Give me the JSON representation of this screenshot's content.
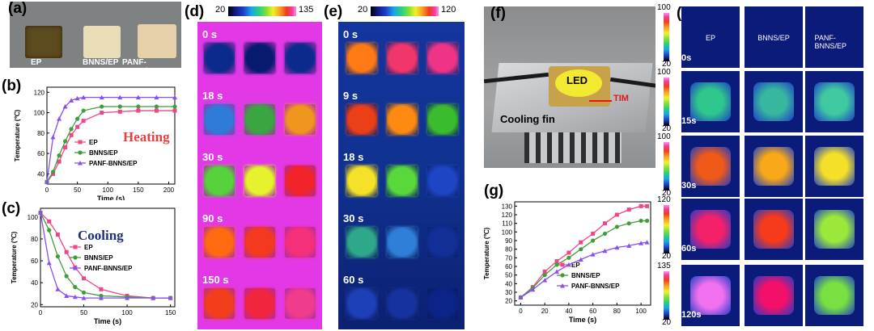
{
  "panels": {
    "a": "(a)",
    "b": "(b)",
    "c": "(c)",
    "d": "(d)",
    "e": "(e)",
    "f": "(f)",
    "g": "(g)",
    "h": "(h)"
  },
  "photo_a": {
    "labels": [
      "EP",
      "BNNS/EP",
      "PANF-BNNS/EP"
    ]
  },
  "photo_f": {
    "led": "LED",
    "tim": "TIM",
    "fin": "Cooling fin"
  },
  "thermal_d": {
    "cbar_min": "20",
    "cbar_max": "135",
    "times": [
      "0 s",
      "18 s",
      "30 s",
      "90 s",
      "150 s"
    ],
    "colors": [
      [
        "#0a2a8c",
        "#061a70",
        "#0a2a8c"
      ],
      [
        "#2f7bd8",
        "#3aa642",
        "#f0961f"
      ],
      [
        "#58d23a",
        "#e6f22c",
        "#f0242a"
      ],
      [
        "#ff6a10",
        "#f43a1e",
        "#f5307a"
      ],
      [
        "#f33e1c",
        "#f1263e",
        "#ef3c8c"
      ]
    ]
  },
  "thermal_e": {
    "cbar_min": "20",
    "cbar_max": "120",
    "times": [
      "0 s",
      "9 s",
      "18 s",
      "30 s",
      "60 s"
    ],
    "colors": [
      [
        "#ff7a14",
        "#f0366a",
        "#ef3488"
      ],
      [
        "#ec3f18",
        "#ff8a12",
        "#3bbc2c"
      ],
      [
        "#f4e228",
        "#58d83a",
        "#1d45c4"
      ],
      [
        "#2fa88a",
        "#2f7fd9",
        "#122f98"
      ],
      [
        "#1d3fb8",
        "#16329e",
        "#0c2488"
      ]
    ]
  },
  "thermal_h": {
    "columns": [
      "EP",
      "BNNS/EP",
      "PANF-BNNS/EP"
    ],
    "times": [
      "0s",
      "15s",
      "30s",
      "60s",
      "120s"
    ],
    "cbar_max": [
      "100",
      "100",
      "100",
      "120",
      "135"
    ],
    "cbar_min": [
      "20",
      "20",
      "20",
      "20",
      "20"
    ],
    "colors": [
      [
        "#0a1650",
        "#0a1650",
        "#0a1650"
      ],
      [
        "#2fc88c",
        "#37b6a0",
        "#40c8a0"
      ],
      [
        "#f05a18",
        "#f8a818",
        "#f4e028"
      ],
      [
        "#f4206a",
        "#f83a1c",
        "#9ce83a"
      ],
      [
        "#f070f0",
        "#f4106a",
        "#78e040"
      ]
    ]
  },
  "chart_data": [
    {
      "type": "line",
      "title": "Heating",
      "xlabel": "Time (s)",
      "ylabel": "Temperature (℃)",
      "xlim": [
        0,
        210
      ],
      "ylim": [
        30,
        125
      ],
      "xticks": [
        0,
        50,
        100,
        150,
        200
      ],
      "yticks": [
        40,
        60,
        80,
        100,
        120
      ],
      "series": [
        {
          "name": "EP",
          "color": "#f0458a",
          "marker": "square",
          "x": [
            0,
            10,
            20,
            30,
            40,
            50,
            60,
            90,
            120,
            150,
            180,
            210
          ],
          "y": [
            32,
            40,
            52,
            66,
            78,
            86,
            92,
            100,
            101,
            102,
            102,
            102
          ]
        },
        {
          "name": "BNNS/EP",
          "color": "#3f9e3a",
          "marker": "circle",
          "x": [
            0,
            10,
            20,
            30,
            40,
            50,
            60,
            90,
            120,
            150,
            180,
            210
          ],
          "y": [
            32,
            42,
            58,
            72,
            84,
            94,
            102,
            106,
            106,
            106,
            106,
            106
          ]
        },
        {
          "name": "PANF-BNNS/EP",
          "color": "#8a4ff0",
          "marker": "triangle",
          "x": [
            0,
            10,
            20,
            30,
            40,
            50,
            60,
            90,
            120,
            150,
            180,
            210
          ],
          "y": [
            32,
            76,
            94,
            106,
            112,
            114,
            115,
            115,
            115,
            115,
            115,
            115
          ]
        }
      ]
    },
    {
      "type": "line",
      "title": "Cooling",
      "xlabel": "Time (s)",
      "ylabel": "Temperature (℃)",
      "xlim": [
        0,
        155
      ],
      "ylim": [
        18,
        108
      ],
      "xticks": [
        0,
        50,
        100,
        150
      ],
      "yticks": [
        20,
        40,
        60,
        80,
        100
      ],
      "series": [
        {
          "name": "EP",
          "color": "#f0458a",
          "marker": "square",
          "x": [
            0,
            10,
            20,
            30,
            40,
            50,
            70,
            100,
            130,
            150
          ],
          "y": [
            104,
            96,
            84,
            68,
            54,
            44,
            34,
            28,
            26,
            26
          ]
        },
        {
          "name": "BNNS/EP",
          "color": "#3f9e3a",
          "marker": "circle",
          "x": [
            0,
            10,
            20,
            30,
            40,
            50,
            70,
            100,
            130,
            150
          ],
          "y": [
            104,
            88,
            64,
            46,
            36,
            31,
            28,
            27,
            26,
            26
          ]
        },
        {
          "name": "PANF-BNNS/EP",
          "color": "#8a4ff0",
          "marker": "triangle",
          "x": [
            0,
            10,
            20,
            30,
            40,
            50,
            70,
            100,
            130,
            150
          ],
          "y": [
            104,
            58,
            34,
            28,
            27,
            26,
            26,
            26,
            26,
            26
          ]
        }
      ]
    },
    {
      "type": "line",
      "title": "",
      "xlabel": "Time (s)",
      "ylabel": "Temperature (℃)",
      "xlim": [
        -5,
        108
      ],
      "ylim": [
        15,
        135
      ],
      "xticks": [
        0,
        20,
        40,
        60,
        80,
        100
      ],
      "yticks": [
        20,
        30,
        40,
        50,
        60,
        70,
        80,
        90,
        100,
        110,
        120,
        130
      ],
      "series": [
        {
          "name": "EP",
          "color": "#f0458a",
          "marker": "square",
          "x": [
            0,
            10,
            20,
            30,
            40,
            50,
            60,
            70,
            80,
            90,
            100,
            105
          ],
          "y": [
            24,
            36,
            54,
            66,
            76,
            88,
            98,
            110,
            120,
            126,
            130,
            130
          ]
        },
        {
          "name": "BNNS/EP",
          "color": "#3f9e3a",
          "marker": "circle",
          "x": [
            0,
            10,
            20,
            30,
            40,
            50,
            60,
            70,
            80,
            90,
            100,
            105
          ],
          "y": [
            24,
            35,
            50,
            62,
            70,
            80,
            90,
            98,
            106,
            110,
            113,
            113
          ]
        },
        {
          "name": "PANF-BNNS/EP",
          "color": "#8a4ff0",
          "marker": "triangle",
          "x": [
            0,
            10,
            20,
            30,
            40,
            50,
            60,
            70,
            80,
            90,
            100,
            105
          ],
          "y": [
            24,
            33,
            44,
            54,
            62,
            68,
            74,
            78,
            82,
            84,
            87,
            88
          ]
        }
      ]
    }
  ]
}
